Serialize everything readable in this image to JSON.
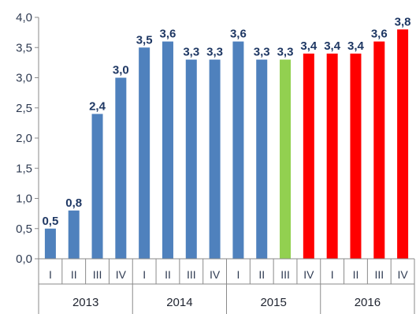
{
  "chart_data": {
    "type": "bar",
    "categories": [
      "I",
      "II",
      "III",
      "IV",
      "I",
      "II",
      "III",
      "IV",
      "I",
      "II",
      "III",
      "IV",
      "I",
      "II",
      "III",
      "IV"
    ],
    "years": [
      "2013",
      "2014",
      "2015",
      "2016"
    ],
    "values": [
      0.5,
      0.8,
      2.4,
      3.0,
      3.5,
      3.6,
      3.3,
      3.3,
      3.6,
      3.3,
      3.3,
      3.4,
      3.4,
      3.4,
      3.6,
      3.8
    ],
    "value_labels": [
      "0,5",
      "0,8",
      "2,4",
      "3,0",
      "3,5",
      "3,6",
      "3,3",
      "3,3",
      "3,6",
      "3,3",
      "3,3",
      "3,4",
      "3,4",
      "3,4",
      "3,6",
      "3,8"
    ],
    "bar_colors": [
      "#4f81bd",
      "#4f81bd",
      "#4f81bd",
      "#4f81bd",
      "#4f81bd",
      "#4f81bd",
      "#4f81bd",
      "#4f81bd",
      "#4f81bd",
      "#4f81bd",
      "#92d050",
      "#ff0000",
      "#ff0000",
      "#ff0000",
      "#ff0000",
      "#ff0000"
    ],
    "yticks": [
      0,
      0.5,
      1.0,
      1.5,
      2.0,
      2.5,
      3.0,
      3.5,
      4.0
    ],
    "ytick_labels": [
      "0,0",
      "0,5",
      "1,0",
      "1,5",
      "2,0",
      "2,5",
      "3,0",
      "3,5",
      "4,0"
    ],
    "ylim": [
      0,
      4.0
    ],
    "grid": false,
    "legend": "none",
    "title": "",
    "xlabel": "",
    "ylabel": ""
  }
}
